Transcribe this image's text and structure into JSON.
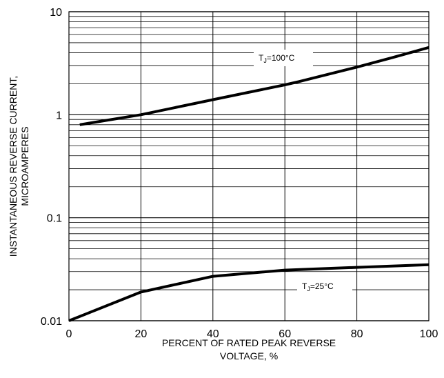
{
  "chart_data": {
    "type": "line",
    "xlabel": [
      "PERCENT OF RATED PEAK REVERSE",
      "VOLTAGE, %"
    ],
    "ylabel": [
      "INSTANTANEOUS REVERSE CURRENT,",
      "MICROAMPERES"
    ],
    "xlim": [
      0,
      100
    ],
    "ylim": [
      0.01,
      10
    ],
    "yscale": "log",
    "grid": true,
    "x_ticks": [
      0,
      20,
      40,
      60,
      80,
      100
    ],
    "x_tick_labels": [
      "0",
      "20",
      "40",
      "60",
      "80",
      "100"
    ],
    "y_ticks": [
      0.01,
      0.1,
      1,
      10
    ],
    "y_tick_labels": [
      "0.01",
      "0.1",
      "1",
      "10"
    ],
    "series": [
      {
        "name_prefix": "T",
        "name_subscript": "J",
        "name_suffix": "=100°C",
        "x": [
          3,
          20,
          40,
          60,
          64,
          80,
          90,
          100
        ],
        "y": [
          0.8,
          1.0,
          1.4,
          1.95,
          2.1,
          2.9,
          3.6,
          4.5
        ]
      },
      {
        "name_prefix": "T",
        "name_subscript": "J",
        "name_suffix": "=25°C",
        "x": [
          0,
          20,
          40,
          60,
          80,
          100
        ],
        "y": [
          0.01,
          0.019,
          0.027,
          0.031,
          0.033,
          0.035
        ]
      }
    ]
  }
}
